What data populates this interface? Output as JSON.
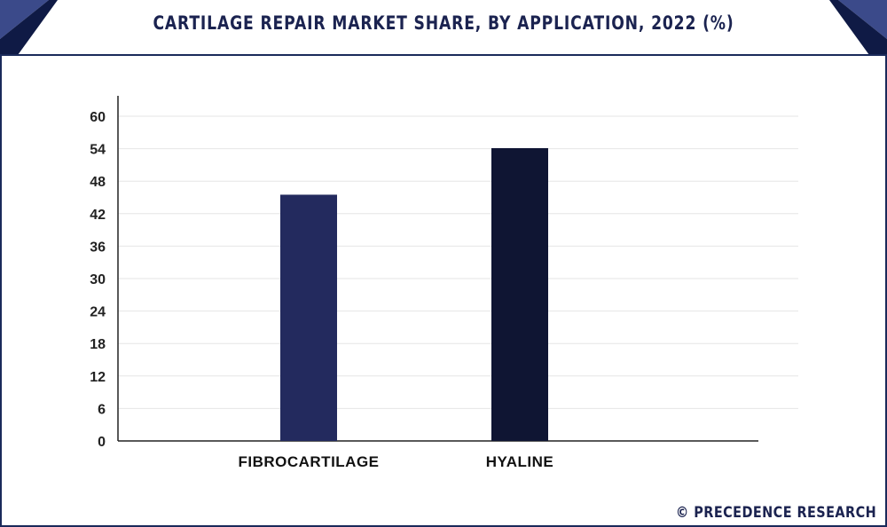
{
  "title": "CARTILAGE REPAIR MARKET SHARE, BY APPLICATION, 2022 (%)",
  "footer": "© PRECEDENCE RESEARCH",
  "colors": {
    "frame": "#1a2a5a",
    "title": "#1b2350",
    "corner_dark": "#0f1a45",
    "corner_light": "#3b4a8a",
    "grid": "#e6e6e6",
    "axis": "#222222"
  },
  "chart_data": {
    "type": "bar",
    "title": "CARTILAGE REPAIR MARKET SHARE, BY APPLICATION, 2022 (%)",
    "categories": [
      "FIBROCARTILAGE",
      "HYALINE"
    ],
    "values": [
      45.5,
      54.1
    ],
    "bar_colors": [
      "#232a5e",
      "#0f1533"
    ],
    "xlabel": "",
    "ylabel": "",
    "ylim": [
      0,
      60
    ],
    "yticks": [
      0,
      6,
      12,
      18,
      24,
      30,
      36,
      42,
      48,
      54,
      60
    ],
    "grid": true,
    "legend": "none"
  }
}
